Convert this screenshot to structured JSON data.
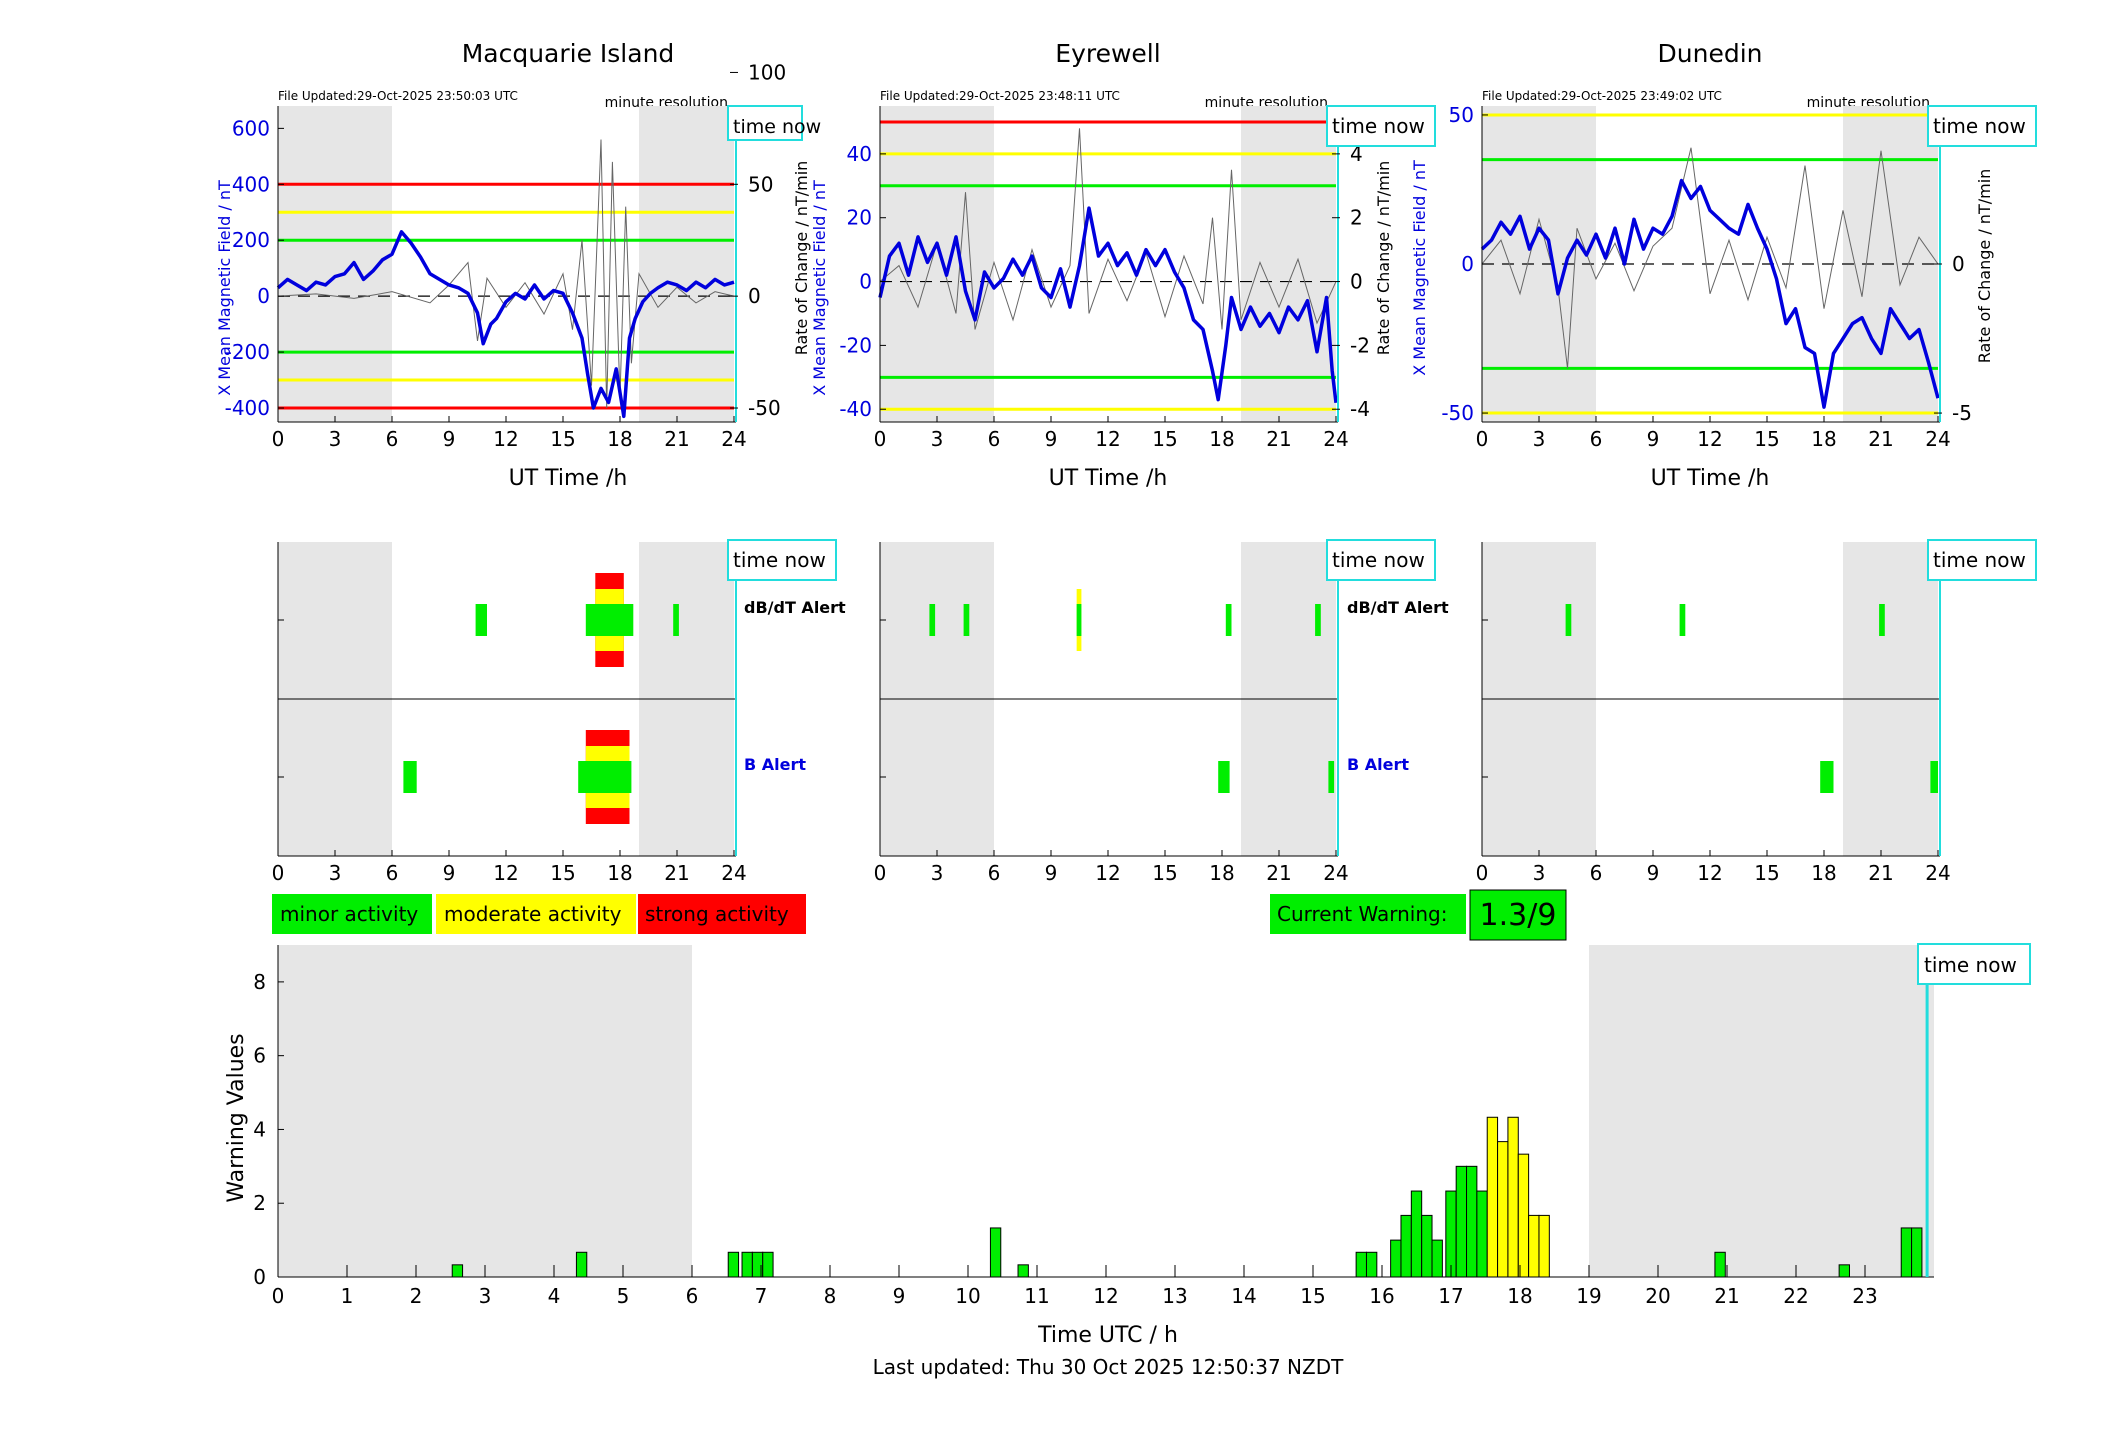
{
  "sites": [
    {
      "title": "Macquarie Island",
      "file_updated": "File Updated:29-Oct-2025 23:50:03 UTC",
      "resolution": "minute resolution",
      "time_now": "time now",
      "left_ylabel": "X Mean Magnetic Field / nT",
      "right_ylabel": "",
      "xlabel": "UT Time /h",
      "left_ticks": [
        -400,
        -200,
        0,
        200,
        400,
        600
      ],
      "right_ticks": [
        -50,
        0,
        50,
        100
      ],
      "x_ticks": [
        0,
        3,
        6,
        9,
        12,
        15,
        18,
        21,
        24
      ],
      "alert_labels": [
        "dB/dT Alert",
        "B Alert"
      ]
    },
    {
      "title": "Eyrewell",
      "file_updated": "File Updated:29-Oct-2025 23:48:11 UTC",
      "resolution": "minute resolution",
      "time_now": "time now",
      "left_ylabel": "X Mean Magnetic Field / nT",
      "right_ylabel": "Rate of Change / nT/min",
      "xlabel": "UT Time /h",
      "left_ticks": [
        -40,
        -20,
        0,
        20,
        40
      ],
      "right_ticks": [
        -4,
        -2,
        0,
        2,
        4
      ],
      "x_ticks": [
        0,
        3,
        6,
        9,
        12,
        15,
        18,
        21,
        24
      ],
      "alert_labels": [
        "dB/dT Alert",
        "B Alert"
      ]
    },
    {
      "title": "Dunedin",
      "file_updated": "File Updated:29-Oct-2025 23:49:02 UTC",
      "resolution": "minute resolution",
      "time_now": "time now",
      "left_ylabel": "X Mean Magnetic Field / nT",
      "right_ylabel": "Rate of Change / nT/min",
      "xlabel": "UT Time /h",
      "left_ticks": [
        -50,
        0,
        50
      ],
      "right_ticks": [
        -5,
        0,
        5
      ],
      "x_ticks": [
        0,
        3,
        6,
        9,
        12,
        15,
        18,
        21,
        24
      ],
      "alert_labels": [
        "",
        ""
      ]
    }
  ],
  "legend": {
    "minor": "minor activity",
    "moderate": "moderate activity",
    "strong": "strong activity"
  },
  "current_warning": {
    "label": "Current Warning:",
    "value": "1.3/9"
  },
  "warning_chart": {
    "ylabel": "Warning Values",
    "xlabel": "Time UTC / h",
    "time_now": "time now"
  },
  "footer": {
    "last_updated": "Last updated: Thu 30 Oct 2025 12:50:37 NZDT"
  },
  "colors": {
    "minor": "#00ee00",
    "moderate": "#ffff00",
    "strong": "#ff0000",
    "field": "#0000dd",
    "time_now": "#22dddd",
    "night": "#e6e6e6"
  },
  "chart_data": [
    {
      "type": "line",
      "title": "Macquarie Island",
      "xlabel": "UT Time /h",
      "ylabel": "X Mean Magnetic Field / nT",
      "xlim": [
        0,
        24
      ],
      "ylim": [
        -450,
        680
      ],
      "y2lim": [
        -56.25,
        85
      ],
      "night_shading": [
        [
          0,
          6
        ],
        [
          19,
          24
        ]
      ],
      "thresholds": [
        {
          "value": 400,
          "color": "red"
        },
        {
          "value": -400,
          "color": "red"
        },
        {
          "value": 300,
          "color": "yellow"
        },
        {
          "value": -300,
          "color": "yellow"
        },
        {
          "value": 200,
          "color": "green"
        },
        {
          "value": -200,
          "color": "green"
        }
      ],
      "series": [
        {
          "name": "",
          "axis": "left",
          "x": [
            0,
            0.5,
            1,
            1.5,
            2,
            2.5,
            3,
            3.5,
            4,
            4.5,
            5,
            5.5,
            6,
            6.5,
            7,
            7.5,
            8,
            8.5,
            9,
            9.5,
            10,
            10.5,
            10.8,
            11.2,
            11.5,
            12,
            12.5,
            13,
            13.5,
            14,
            14.5,
            15,
            15.5,
            16,
            16.3,
            16.6,
            17,
            17.4,
            17.8,
            18.2,
            18.5,
            18.8,
            19.2,
            19.6,
            20,
            20.5,
            21,
            21.5,
            22,
            22.5,
            23,
            23.5,
            24
          ],
          "values": [
            30,
            60,
            40,
            20,
            50,
            40,
            70,
            80,
            120,
            60,
            90,
            130,
            150,
            230,
            190,
            140,
            80,
            60,
            40,
            30,
            10,
            -60,
            -170,
            -100,
            -80,
            -20,
            10,
            -10,
            40,
            -10,
            20,
            10,
            -60,
            -150,
            -280,
            -400,
            -330,
            -380,
            -260,
            -430,
            -150,
            -80,
            -20,
            10,
            30,
            50,
            40,
            20,
            50,
            30,
            60,
            40,
            50
          ]
        },
        {
          "name": "",
          "axis": "right",
          "x": [
            0,
            2,
            4,
            6,
            8,
            9,
            10,
            10.5,
            11,
            12,
            13,
            14,
            15,
            15.5,
            16,
            16.5,
            17,
            17.3,
            17.6,
            18,
            18.3,
            18.6,
            19,
            20,
            21,
            22,
            23,
            24
          ],
          "values": [
            0,
            1,
            -1,
            2,
            -3,
            5,
            15,
            -20,
            8,
            -5,
            6,
            -8,
            10,
            -15,
            25,
            -40,
            70,
            -50,
            60,
            -45,
            40,
            -30,
            10,
            -5,
            4,
            -3,
            2,
            0
          ]
        }
      ]
    },
    {
      "type": "line",
      "title": "Eyrewell",
      "xlabel": "UT Time /h",
      "ylabel": "X Mean Magnetic Field / nT",
      "xlim": [
        0,
        24
      ],
      "ylim": [
        -44,
        55
      ],
      "y2lim": [
        -4.4,
        5.5
      ],
      "night_shading": [
        [
          0,
          6
        ],
        [
          19,
          24
        ]
      ],
      "thresholds": [
        {
          "value": 50,
          "color": "red"
        },
        {
          "value": 40,
          "color": "yellow"
        },
        {
          "value": -40,
          "color": "yellow"
        },
        {
          "value": 30,
          "color": "green"
        },
        {
          "value": -30,
          "color": "green"
        }
      ],
      "series": [
        {
          "name": "",
          "axis": "left",
          "x": [
            0,
            0.5,
            1,
            1.5,
            2,
            2.5,
            3,
            3.5,
            4,
            4.5,
            5,
            5.5,
            6,
            6.5,
            7,
            7.5,
            8,
            8.5,
            9,
            9.5,
            10,
            10.5,
            11,
            11.5,
            12,
            12.5,
            13,
            13.5,
            14,
            14.5,
            15,
            15.5,
            16,
            16.5,
            17,
            17.5,
            17.8,
            18.2,
            18.5,
            19,
            19.5,
            20,
            20.5,
            21,
            21.5,
            22,
            22.5,
            23,
            23.5,
            23.8,
            24
          ],
          "values": [
            -5,
            8,
            12,
            2,
            14,
            6,
            12,
            2,
            14,
            -3,
            -12,
            3,
            -2,
            1,
            7,
            2,
            8,
            -2,
            -5,
            4,
            -8,
            5,
            23,
            8,
            12,
            5,
            9,
            2,
            10,
            5,
            10,
            3,
            -2,
            -12,
            -15,
            -28,
            -37,
            -20,
            -5,
            -15,
            -8,
            -14,
            -10,
            -16,
            -8,
            -12,
            -6,
            -22,
            -5,
            -28,
            -38
          ]
        },
        {
          "name": "",
          "axis": "right",
          "x": [
            0,
            1,
            2,
            3,
            4,
            4.5,
            5,
            6,
            7,
            8,
            9,
            10,
            10.5,
            11,
            12,
            13,
            14,
            15,
            16,
            17,
            17.5,
            18,
            18.5,
            19,
            20,
            21,
            22,
            23,
            24
          ],
          "values": [
            0,
            0.5,
            -0.8,
            1.2,
            -1,
            2.8,
            -1.5,
            0.6,
            -1.2,
            1,
            -0.8,
            0.5,
            4.8,
            -1,
            0.7,
            -0.6,
            0.9,
            -1.1,
            0.8,
            -0.7,
            2,
            -1.5,
            3.5,
            -1.2,
            0.6,
            -0.8,
            0.7,
            -1.3,
            0
          ]
        }
      ]
    },
    {
      "type": "line",
      "title": "Dunedin",
      "xlabel": "UT Time /h",
      "ylabel": "X Mean Magnetic Field / nT",
      "xlim": [
        0,
        24
      ],
      "ylim": [
        -53,
        53
      ],
      "y2lim": [
        -5.3,
        5.3
      ],
      "night_shading": [
        [
          0,
          6
        ],
        [
          19,
          24
        ]
      ],
      "thresholds": [
        {
          "value": 50,
          "color": "yellow"
        },
        {
          "value": -50,
          "color": "yellow"
        },
        {
          "value": 35,
          "color": "green"
        },
        {
          "value": -35,
          "color": "green"
        }
      ],
      "series": [
        {
          "name": "",
          "axis": "left",
          "x": [
            0,
            0.5,
            1,
            1.5,
            2,
            2.5,
            3,
            3.5,
            4,
            4.5,
            5,
            5.5,
            6,
            6.5,
            7,
            7.5,
            8,
            8.5,
            9,
            9.5,
            10,
            10.5,
            11,
            11.5,
            12,
            12.5,
            13,
            13.5,
            14,
            14.5,
            15,
            15.5,
            16,
            16.5,
            17,
            17.5,
            18,
            18.5,
            19,
            19.5,
            20,
            20.5,
            21,
            21.5,
            22,
            22.5,
            23,
            23.5,
            24
          ],
          "values": [
            5,
            8,
            14,
            10,
            16,
            5,
            12,
            8,
            -10,
            2,
            8,
            3,
            10,
            2,
            12,
            0,
            15,
            5,
            12,
            10,
            16,
            28,
            22,
            26,
            18,
            15,
            12,
            10,
            20,
            12,
            5,
            -5,
            -20,
            -15,
            -28,
            -30,
            -48,
            -30,
            -25,
            -20,
            -18,
            -25,
            -30,
            -15,
            -20,
            -25,
            -22,
            -33,
            -45
          ]
        },
        {
          "name": "",
          "axis": "right",
          "x": [
            0,
            1,
            2,
            3,
            4,
            4.5,
            5,
            6,
            7,
            8,
            9,
            10,
            11,
            12,
            13,
            14,
            15,
            16,
            17,
            18,
            19,
            20,
            21,
            22,
            23,
            24
          ],
          "values": [
            0,
            0.8,
            -1,
            1.5,
            -0.8,
            -3.5,
            1.2,
            -0.5,
            0.7,
            -0.9,
            0.6,
            1.2,
            3.9,
            -1,
            0.8,
            -1.2,
            0.9,
            -0.8,
            3.3,
            -1.5,
            1.8,
            -1.1,
            3.8,
            -0.7,
            0.9,
            0
          ]
        }
      ]
    },
    {
      "type": "bar",
      "title": "",
      "xlabel": "Time UTC / h",
      "ylabel": "Warning Values",
      "xlim": [
        0,
        24
      ],
      "ylim": [
        0,
        9
      ],
      "night_shading": [
        [
          0,
          6
        ],
        [
          19,
          24
        ]
      ],
      "time_now": 23.9,
      "x": [
        2.6,
        4.4,
        6.6,
        6.8,
        6.95,
        7.1,
        10.4,
        10.8,
        15.7,
        15.85,
        16.2,
        16.35,
        16.5,
        16.65,
        16.8,
        17.0,
        17.15,
        17.3,
        17.45,
        17.6,
        17.75,
        17.9,
        18.05,
        18.2,
        18.35,
        20.9,
        22.7,
        23.6,
        23.75
      ],
      "values": [
        0.33,
        0.67,
        0.67,
        0.67,
        0.67,
        0.67,
        1.33,
        0.33,
        0.67,
        0.67,
        1.0,
        1.67,
        2.33,
        1.67,
        1.0,
        2.33,
        3.0,
        3.0,
        2.33,
        4.33,
        3.67,
        4.33,
        3.33,
        1.67,
        1.67,
        0.67,
        0.33,
        1.33,
        1.33
      ],
      "levels": [
        "minor",
        "minor",
        "minor",
        "minor",
        "minor",
        "minor",
        "minor",
        "minor",
        "minor",
        "minor",
        "minor",
        "minor",
        "minor",
        "minor",
        "minor",
        "minor",
        "minor",
        "minor",
        "minor",
        "moderate",
        "moderate",
        "moderate",
        "moderate",
        "moderate",
        "moderate",
        "minor",
        "minor",
        "minor",
        "minor"
      ],
      "x_ticks": [
        0,
        1,
        2,
        3,
        4,
        5,
        6,
        7,
        8,
        9,
        10,
        11,
        12,
        13,
        14,
        15,
        16,
        17,
        18,
        19,
        20,
        21,
        22,
        23
      ],
      "y_ticks": [
        0,
        2,
        4,
        6,
        8
      ]
    }
  ],
  "alert_data": [
    {
      "dbdt": [
        {
          "start": 10.4,
          "end": 11.0,
          "level": "minor"
        },
        {
          "start": 16.2,
          "end": 18.7,
          "level": "minor"
        },
        {
          "start": 16.7,
          "end": 18.2,
          "level": "moderate"
        },
        {
          "start": 16.7,
          "end": 18.2,
          "level": "strong"
        },
        {
          "start": 20.8,
          "end": 21.1,
          "level": "minor"
        }
      ],
      "b": [
        {
          "start": 6.6,
          "end": 7.3,
          "level": "minor"
        },
        {
          "start": 15.8,
          "end": 18.6,
          "level": "minor"
        },
        {
          "start": 16.2,
          "end": 18.5,
          "level": "moderate"
        },
        {
          "start": 16.2,
          "end": 18.5,
          "level": "strong"
        }
      ]
    },
    {
      "dbdt": [
        {
          "start": 2.6,
          "end": 2.9,
          "level": "minor"
        },
        {
          "start": 4.4,
          "end": 4.7,
          "level": "minor"
        },
        {
          "start": 10.35,
          "end": 10.6,
          "level": "minor"
        },
        {
          "start": 10.35,
          "end": 10.6,
          "level": "moderate"
        },
        {
          "start": 18.2,
          "end": 18.5,
          "level": "minor"
        },
        {
          "start": 22.9,
          "end": 23.2,
          "level": "minor"
        }
      ],
      "b": [
        {
          "start": 17.8,
          "end": 18.4,
          "level": "minor"
        },
        {
          "start": 23.6,
          "end": 23.9,
          "level": "minor"
        }
      ]
    },
    {
      "dbdt": [
        {
          "start": 4.4,
          "end": 4.7,
          "level": "minor"
        },
        {
          "start": 10.4,
          "end": 10.7,
          "level": "minor"
        },
        {
          "start": 20.9,
          "end": 21.2,
          "level": "minor"
        }
      ],
      "b": [
        {
          "start": 17.8,
          "end": 18.5,
          "level": "minor"
        },
        {
          "start": 23.6,
          "end": 24.0,
          "level": "minor"
        }
      ]
    }
  ]
}
